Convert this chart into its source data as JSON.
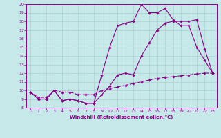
{
  "xlabel": "Windchill (Refroidissement éolien,°C)",
  "background_color": "#c6e8e8",
  "grid_color": "#add4d4",
  "line_color": "#880088",
  "x_hours": [
    0,
    1,
    2,
    3,
    4,
    5,
    6,
    7,
    8,
    9,
    10,
    11,
    12,
    13,
    14,
    15,
    16,
    17,
    18,
    19,
    20,
    21,
    22,
    23
  ],
  "line1_y": [
    9.8,
    9.0,
    9.0,
    10.0,
    8.8,
    9.0,
    8.8,
    8.5,
    8.5,
    9.5,
    10.5,
    11.8,
    12.0,
    11.8,
    14.0,
    15.5,
    17.0,
    17.8,
    18.0,
    18.0,
    18.0,
    18.2,
    14.8,
    12.0
  ],
  "line2_y": [
    9.8,
    9.0,
    9.0,
    10.0,
    8.8,
    9.0,
    8.8,
    8.5,
    8.5,
    11.8,
    15.0,
    17.5,
    17.8,
    18.0,
    20.0,
    19.0,
    19.0,
    19.5,
    18.2,
    17.5,
    17.5,
    15.0,
    13.5,
    12.0
  ],
  "line3_y": [
    9.8,
    9.2,
    9.2,
    10.0,
    9.8,
    9.8,
    9.5,
    9.5,
    9.5,
    10.0,
    10.2,
    10.4,
    10.6,
    10.8,
    11.0,
    11.2,
    11.4,
    11.5,
    11.6,
    11.7,
    11.8,
    11.9,
    12.0,
    12.0
  ],
  "xlim_min": -0.5,
  "xlim_max": 23.5,
  "ylim_min": 8,
  "ylim_max": 20,
  "xticks": [
    0,
    1,
    2,
    3,
    4,
    5,
    6,
    7,
    8,
    9,
    10,
    11,
    12,
    13,
    14,
    15,
    16,
    17,
    18,
    19,
    20,
    21,
    22,
    23
  ],
  "yticks": [
    8,
    9,
    10,
    11,
    12,
    13,
    14,
    15,
    16,
    17,
    18,
    19,
    20
  ]
}
